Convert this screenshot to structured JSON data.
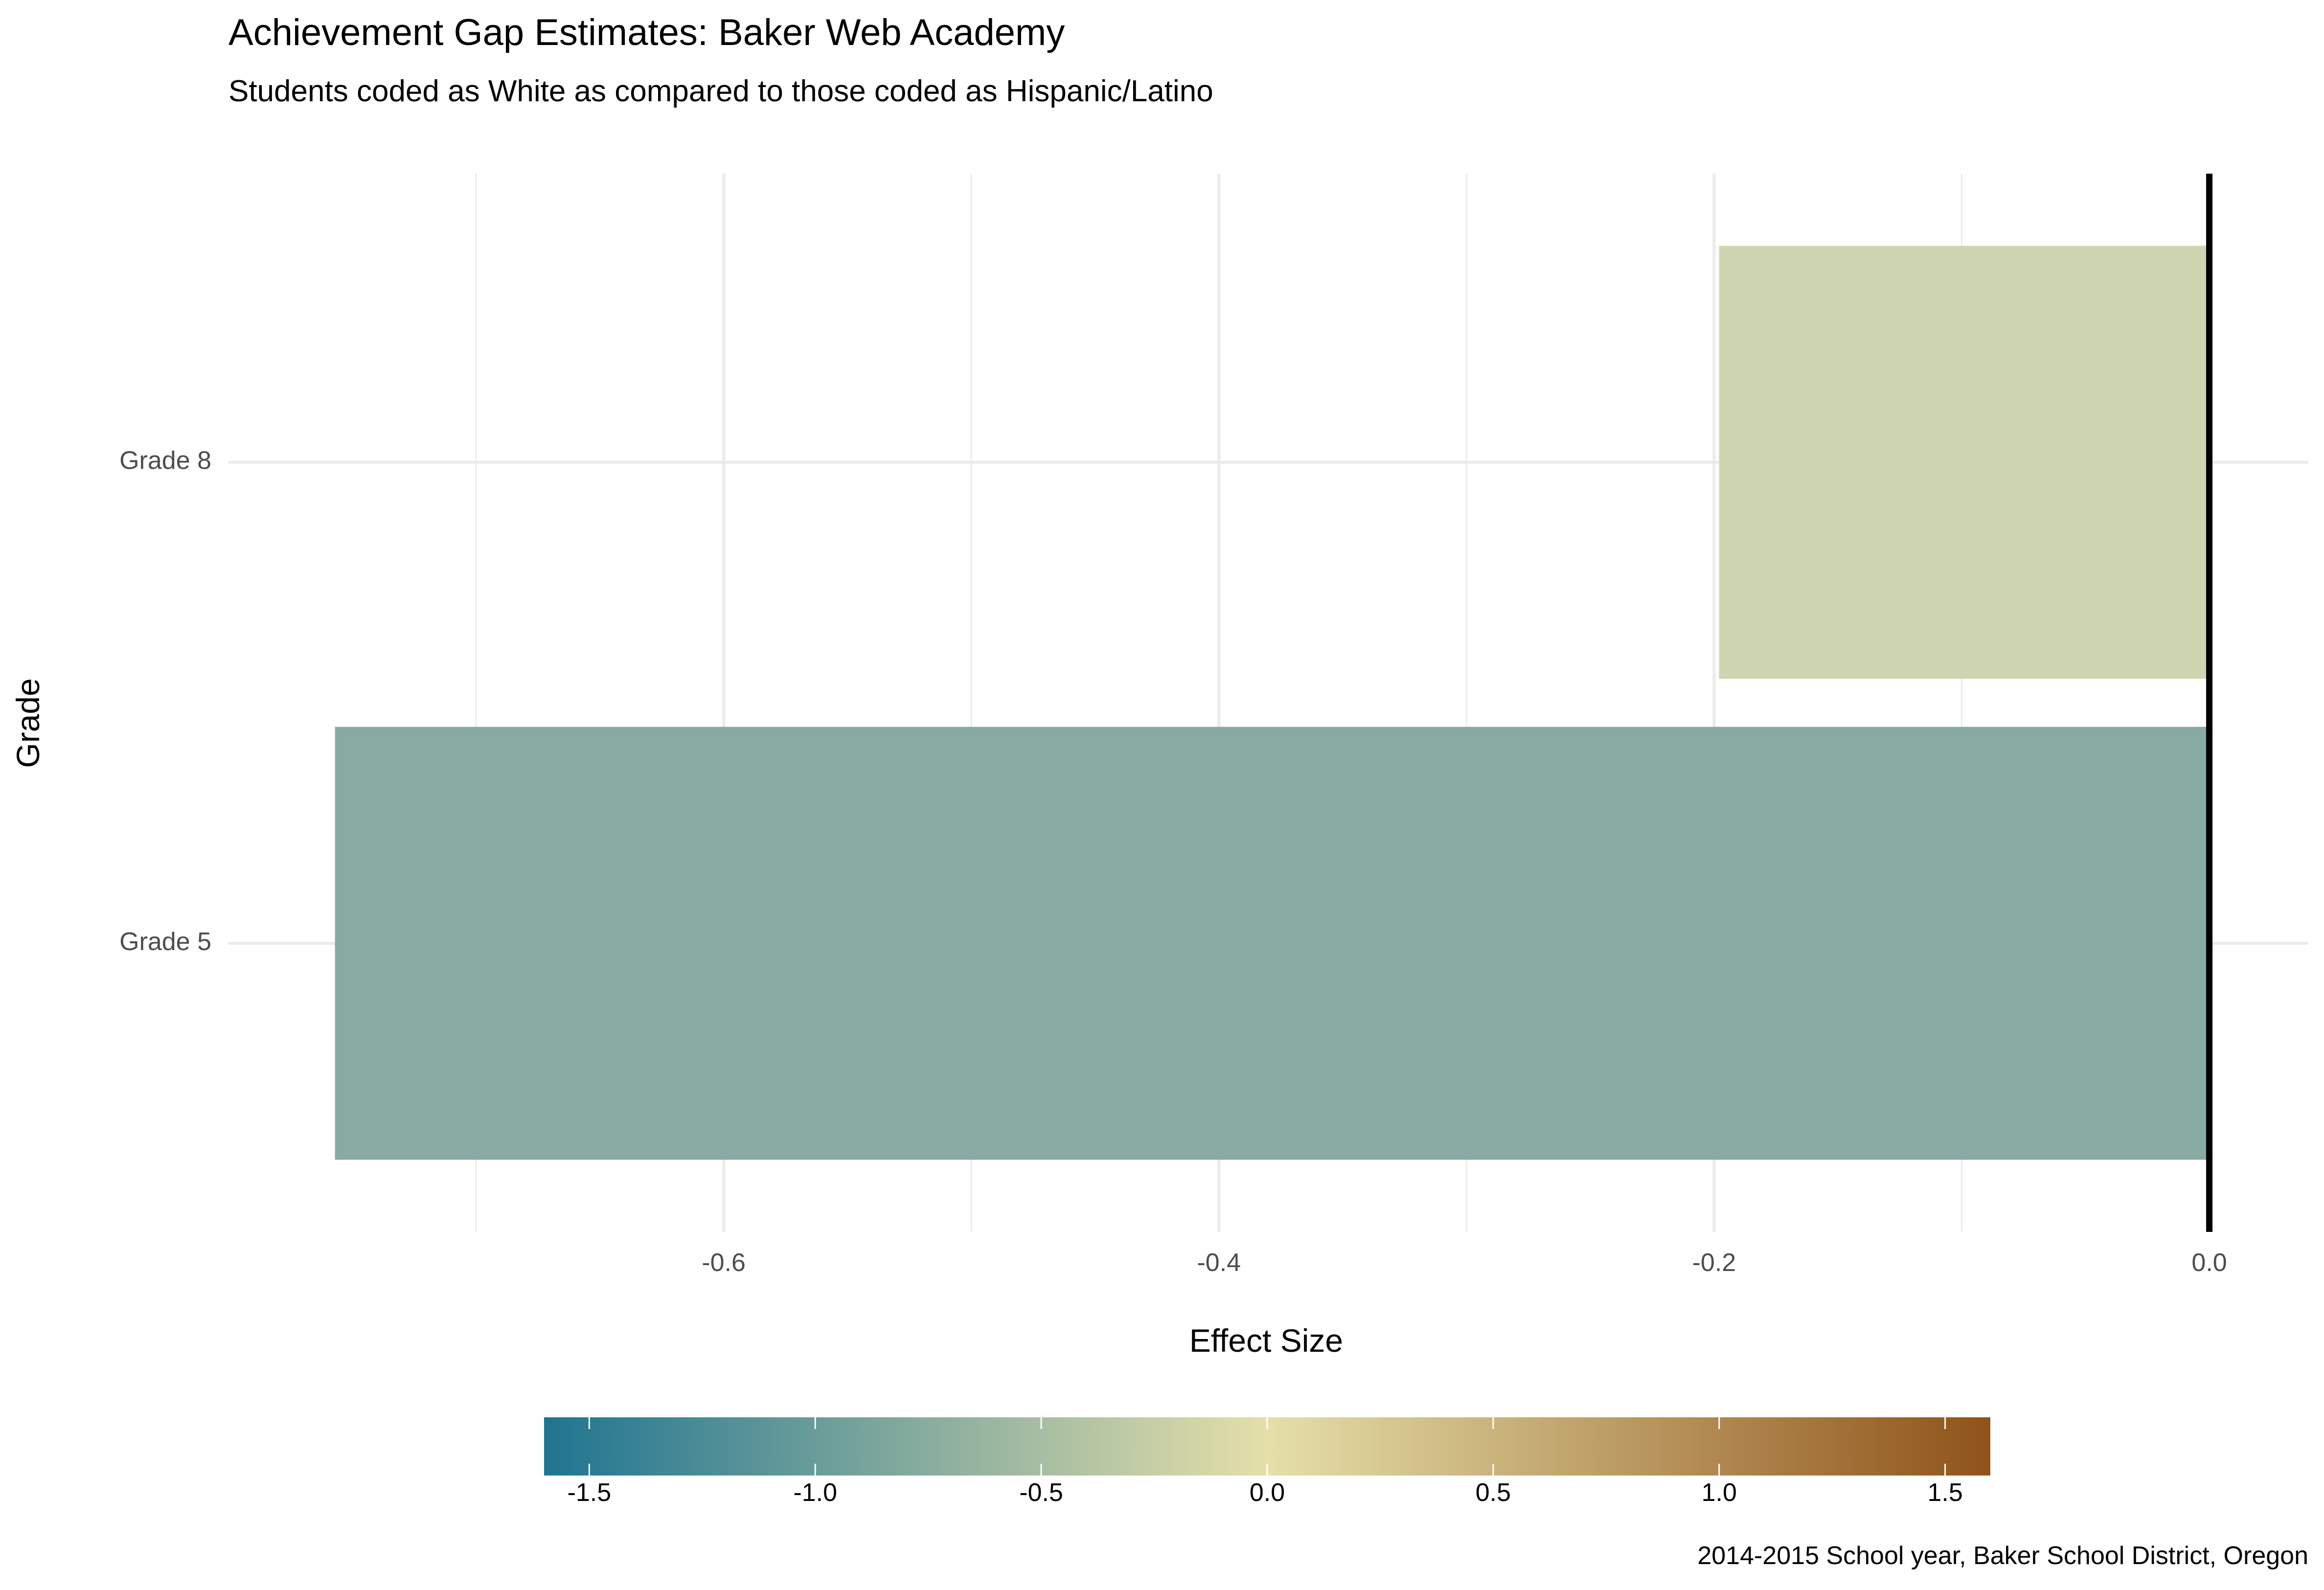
{
  "chart_data": {
    "type": "bar",
    "orientation": "horizontal",
    "title": "Achievement Gap Estimates: Baker Web Academy",
    "subtitle": "Students coded as White as compared to those coded as Hispanic/Latino",
    "xlabel": "Effect Size",
    "ylabel": "Grade",
    "caption": "2014-2015 School year, Baker School District, Oregon",
    "categories": [
      "Grade 5",
      "Grade 8"
    ],
    "values": [
      -0.757,
      -0.198
    ],
    "bar_colors": [
      "#88aaa2",
      "#cfd5b0"
    ],
    "xlim": [
      -0.8,
      0.04
    ],
    "xticks": [
      -0.6,
      -0.4,
      -0.2,
      0.0
    ],
    "xtick_labels": [
      "-0.6",
      "-0.4",
      "-0.2",
      "0.0"
    ],
    "reference_line": 0.0,
    "grid": true,
    "legend": {
      "type": "colorbar",
      "placement": "bottom",
      "range": [
        -1.6,
        1.6
      ],
      "ticks": [
        -1.5,
        -1.0,
        -0.5,
        0.0,
        0.5,
        1.0,
        1.5
      ],
      "tick_labels": [
        "-1.5",
        "-1.0",
        "-0.5",
        "0.0",
        "0.5",
        "1.0",
        "1.5"
      ],
      "colors": [
        "#1f7491",
        "#e5dfa9",
        "#8f531a"
      ]
    }
  }
}
